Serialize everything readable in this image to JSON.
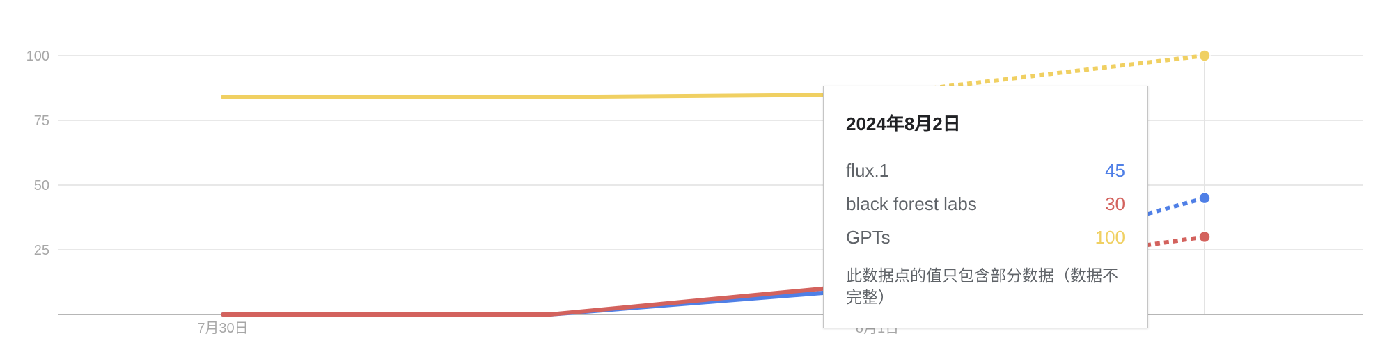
{
  "chart_data": {
    "type": "line",
    "x": [
      "2024-07-30",
      "2024-07-31",
      "2024-08-01",
      "2024-08-02"
    ],
    "x_tick_labels": [
      {
        "x": "2024-07-30",
        "label": "7月30日"
      },
      {
        "x": "2024-08-01",
        "label": "8月1日"
      }
    ],
    "ylim": [
      0,
      110
    ],
    "y_ticks": [
      25,
      50,
      75,
      100
    ],
    "grid": true,
    "series": [
      {
        "name": "flux.1",
        "color": "#4f7fe6",
        "values": [
          0,
          0,
          10,
          45
        ],
        "partial_last": true
      },
      {
        "name": "black forest labs",
        "color": "#d3625d",
        "values": [
          0,
          0,
          12,
          30
        ],
        "partial_last": true
      },
      {
        "name": "GPTs",
        "color": "#f0d062",
        "values": [
          84,
          84,
          85,
          100
        ],
        "partial_last": true
      }
    ],
    "hover_x": "2024-08-02"
  },
  "tooltip": {
    "date": "2024年8月2日",
    "rows": [
      {
        "name": "flux.1",
        "value": "45",
        "color": "#4f7fe6"
      },
      {
        "name": "black forest labs",
        "value": "30",
        "color": "#d3625d"
      },
      {
        "name": "GPTs",
        "value": "100",
        "color": "#f0d062"
      }
    ],
    "note": "此数据点的值只包含部分数据（数据不完整）"
  }
}
